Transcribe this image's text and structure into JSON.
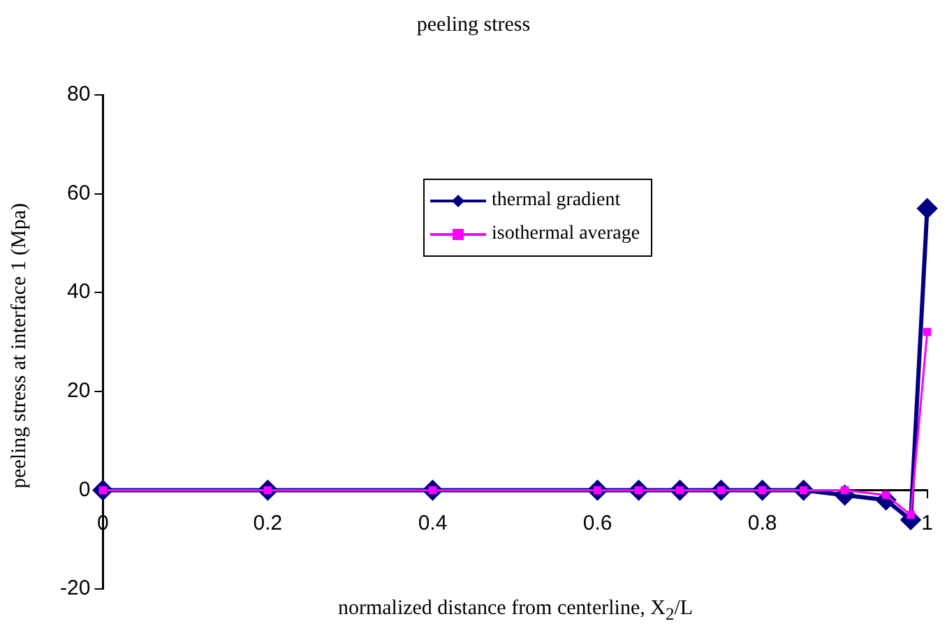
{
  "chart_data": {
    "type": "line",
    "title": "peeling stress",
    "xlabel": "normalized distance from centerline, X$_{2}$/L",
    "ylabel": "peeling stress at interface 1 (Mpa)",
    "x": [
      0,
      0.2,
      0.4,
      0.6,
      0.65,
      0.7,
      0.75,
      0.8,
      0.85,
      0.9,
      0.95,
      0.98,
      1
    ],
    "series": [
      {
        "name": "thermal gradient",
        "color": "#000080",
        "marker": "diamond",
        "values": [
          0,
          0,
          0,
          0,
          0,
          0,
          0,
          0,
          0,
          -1,
          -2,
          -6,
          57
        ]
      },
      {
        "name": "isothermal average",
        "color": "#ff00ff",
        "marker": "square",
        "values": [
          0,
          0,
          0,
          0,
          0,
          0,
          0,
          0,
          0,
          0,
          -1,
          -5,
          32
        ]
      }
    ],
    "xlim": [
      0,
      1
    ],
    "xticks": [
      0,
      0.2,
      0.4,
      0.6,
      0.8,
      1
    ],
    "ylim": [
      -20,
      80
    ],
    "yticks": [
      -20,
      0,
      20,
      40,
      60,
      80
    ],
    "grid": false,
    "legend": "top"
  }
}
